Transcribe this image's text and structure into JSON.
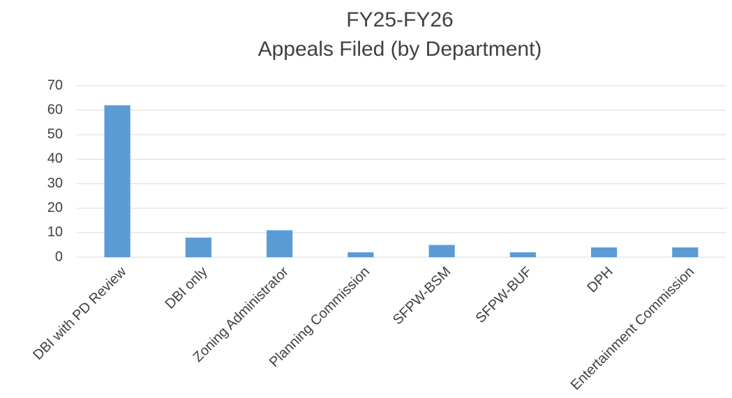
{
  "chart_data": {
    "type": "bar",
    "title": "FY25-FY26",
    "subtitle": "Appeals Filed (by Department)",
    "categories": [
      "DBI with PD Review",
      "DBI only",
      "Zoning Administrator",
      "Planning Commission",
      "SFPW-BSM",
      "SFPW-BUF",
      "DPH",
      "Entertainment Commission"
    ],
    "values": [
      62,
      8,
      11,
      2,
      5,
      2,
      4,
      4
    ],
    "color": "#5b9bd5",
    "ylim": [
      0,
      70
    ],
    "yticks": [
      0,
      10,
      20,
      30,
      40,
      50,
      60,
      70
    ],
    "grid": true
  }
}
